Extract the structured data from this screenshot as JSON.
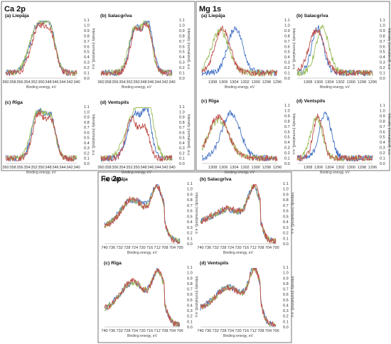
{
  "colors": {
    "blue": "#4472c4",
    "red": "#c0504d",
    "green": "#9bbb59"
  },
  "ylabel": "Intensity (normalized), a.u.",
  "xlabel": "Binding energy, eV",
  "chart_data": [
    {
      "group": "Ca 2p",
      "type": "line",
      "xlim": [
        360,
        340
      ],
      "x_ticks": [
        360,
        358,
        356,
        354,
        352,
        350,
        348,
        346,
        344,
        342,
        340
      ],
      "ylim": [
        0,
        1.1
      ],
      "y_ticks": [
        0,
        0.1,
        0.2,
        0.3,
        0.4,
        0.5,
        0.6,
        0.7,
        0.8,
        0.9,
        1.0,
        1.1
      ],
      "panels": [
        {
          "title": "(a) Liepāja",
          "peaks": {
            "blue": [
              [
                351,
                1.0,
                2.2
              ],
              [
                347.4,
                0.78,
                1.5
              ]
            ],
            "red": [
              [
                350.8,
                0.95,
                2.0
              ],
              [
                347.3,
                0.72,
                1.5
              ]
            ],
            "green": [
              [
                351.2,
                0.97,
                2.2
              ],
              [
                347.5,
                0.8,
                1.6
              ]
            ]
          },
          "baseline": 0.1
        },
        {
          "title": "(b) Salacgrīva",
          "peaks": {
            "blue": [
              [
                350.3,
                0.95,
                1.6
              ],
              [
                346.7,
                1.0,
                1.4
              ]
            ],
            "red": [
              [
                350.2,
                0.9,
                1.6
              ],
              [
                346.8,
                0.92,
                1.4
              ]
            ],
            "green": [
              [
                350.5,
                0.92,
                1.7
              ],
              [
                347,
                0.95,
                1.4
              ]
            ]
          },
          "baseline": 0.1
        },
        {
          "title": "(c) Rīga",
          "peaks": {
            "blue": [
              [
                350.9,
                1.0,
                1.7
              ],
              [
                347.3,
                0.85,
                1.4
              ]
            ],
            "red": [
              [
                350.8,
                0.95,
                1.6
              ],
              [
                347.2,
                0.8,
                1.4
              ]
            ],
            "green": [
              [
                351.1,
                0.97,
                1.8
              ],
              [
                347.5,
                0.82,
                1.5
              ]
            ]
          },
          "baseline": 0.1
        },
        {
          "title": "(d) Ventspils",
          "peaks": {
            "blue": [
              [
                350.6,
                0.95,
                1.9
              ],
              [
                347,
                0.92,
                1.3
              ]
            ],
            "red": [
              [
                351.5,
                0.85,
                1.5
              ],
              [
                347.8,
                0.7,
                1.4
              ]
            ],
            "green": [
              [
                350.3,
                1.0,
                2.6
              ],
              [
                346.8,
                0.95,
                1.7
              ]
            ]
          },
          "baseline": 0.1
        }
      ]
    },
    {
      "group": "Mg 1s",
      "type": "line",
      "xlim": [
        1310,
        1296
      ],
      "x_ticks": [
        1308,
        1306,
        1304,
        1302,
        1300,
        1298,
        1296
      ],
      "ylim": [
        0,
        1.1
      ],
      "y_ticks": [
        0,
        0.1,
        0.2,
        0.3,
        0.4,
        0.5,
        0.6,
        0.7,
        0.8,
        0.9,
        1.0,
        1.1
      ],
      "panels": [
        {
          "title": "(a) Liepāja",
          "peaks": {
            "blue": [
              [
                1303.8,
                0.95,
                1.4
              ]
            ],
            "red": [
              [
                1306.2,
                0.95,
                1.4
              ]
            ],
            "green": [
              [
                1306.6,
                0.9,
                1.6
              ]
            ]
          },
          "baseline": 0.1
        },
        {
          "title": "(b) Salacgrīva",
          "peaks": {
            "blue": [
              [
                1306.2,
                0.95,
                1.1
              ]
            ],
            "red": [
              [
                1306.4,
                0.9,
                1.4
              ]
            ],
            "green": [
              [
                1305.3,
                0.95,
                1.2
              ]
            ]
          },
          "baseline": 0.1
        },
        {
          "title": "(c) Rīga",
          "peaks": {
            "blue": [
              [
                1304.6,
                0.95,
                1.7
              ]
            ],
            "red": [
              [
                1306.9,
                0.9,
                1.8
              ]
            ],
            "green": [
              [
                1306.9,
                0.82,
                1.9
              ]
            ]
          },
          "baseline": 0.1
        },
        {
          "title": "(d) Ventspils",
          "peaks": {
            "blue": [
              [
                1304.8,
                0.95,
                1.1
              ]
            ],
            "red": [
              [
                1306.1,
                0.9,
                0.9
              ]
            ],
            "green": [
              [
                1306.4,
                0.85,
                1.1
              ]
            ]
          },
          "baseline": 0.1
        }
      ]
    },
    {
      "group": "Fe 2p",
      "type": "line",
      "xlim": [
        740,
        700
      ],
      "x_ticks": [
        740,
        736,
        732,
        728,
        724,
        720,
        716,
        712,
        708,
        704,
        700
      ],
      "ylim": [
        0,
        1.1
      ],
      "y_ticks": [
        0,
        0.1,
        0.2,
        0.3,
        0.4,
        0.5,
        0.6,
        0.7,
        0.8,
        0.9,
        1.0,
        1.1
      ],
      "panels": [
        {
          "title": "(a) Liepāja",
          "peaks": {
            "blue": [
              [
                725,
                0.68,
                6.5
              ],
              [
                712,
                0.85,
                3.5
              ]
            ],
            "red": [
              [
                725,
                0.7,
                6
              ],
              [
                711.8,
                0.88,
                3.2
              ]
            ],
            "green": [
              [
                725.3,
                0.68,
                6.2
              ],
              [
                711.9,
                0.85,
                3.4
              ]
            ]
          },
          "baseline": 0.18,
          "edge": 708
        },
        {
          "title": "(b) Salacgrīva",
          "peaks": {
            "blue": [
              [
                725,
                0.5,
                8
              ],
              [
                711.5,
                0.85,
                3.2
              ]
            ],
            "red": [
              [
                725,
                0.52,
                8
              ],
              [
                711.2,
                0.88,
                3
              ]
            ],
            "green": [
              [
                725,
                0.5,
                8
              ],
              [
                711.6,
                0.85,
                3.2
              ]
            ]
          },
          "baseline": 0.25,
          "edge": 708
        },
        {
          "title": "(c) Rīga",
          "peaks": {
            "blue": [
              [
                725,
                0.7,
                6.5
              ],
              [
                711.5,
                0.85,
                3.3
              ]
            ],
            "red": [
              [
                725,
                0.72,
                6.2
              ],
              [
                711.3,
                0.88,
                3.2
              ]
            ],
            "green": [
              [
                725,
                0.7,
                6.4
              ],
              [
                711.5,
                0.85,
                3.3
              ]
            ]
          },
          "baseline": 0.2,
          "edge": 708
        },
        {
          "title": "(d) Ventspils",
          "peaks": {
            "blue": [
              [
                725,
                0.62,
                7
              ],
              [
                711.3,
                0.92,
                3
              ]
            ],
            "red": [
              [
                725,
                0.6,
                7
              ],
              [
                711.2,
                0.9,
                3
              ]
            ],
            "green": [
              [
                725,
                0.6,
                7
              ],
              [
                711.2,
                0.9,
                3
              ]
            ]
          },
          "baseline": 0.2,
          "edge": 708
        }
      ]
    }
  ]
}
